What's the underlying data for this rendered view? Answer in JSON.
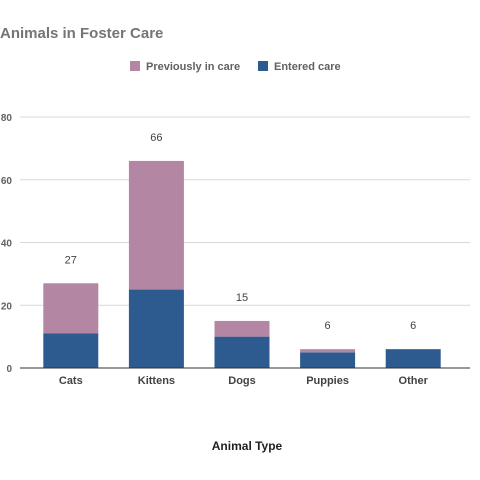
{
  "chart_data": {
    "type": "bar",
    "stacked": true,
    "title": "Animals in Foster Care",
    "xlabel": "Animal Type",
    "ylabel": "",
    "ylim": [
      0,
      80
    ],
    "yticks": [
      0,
      20,
      40,
      60,
      80
    ],
    "grid": true,
    "legend_position": "top",
    "categories": [
      "Cats",
      "Kittens",
      "Dogs",
      "Puppies",
      "Other"
    ],
    "series": [
      {
        "name": "Entered care",
        "color": "#2d5b8f",
        "values": [
          11,
          25,
          10,
          5,
          6
        ]
      },
      {
        "name": "Previously in care",
        "color": "#b386a4",
        "values": [
          16,
          41,
          5,
          1,
          0
        ]
      }
    ],
    "legend_order": [
      "Previously in care",
      "Entered care"
    ],
    "totals": [
      "27",
      "66",
      "15",
      "6",
      "6"
    ]
  }
}
